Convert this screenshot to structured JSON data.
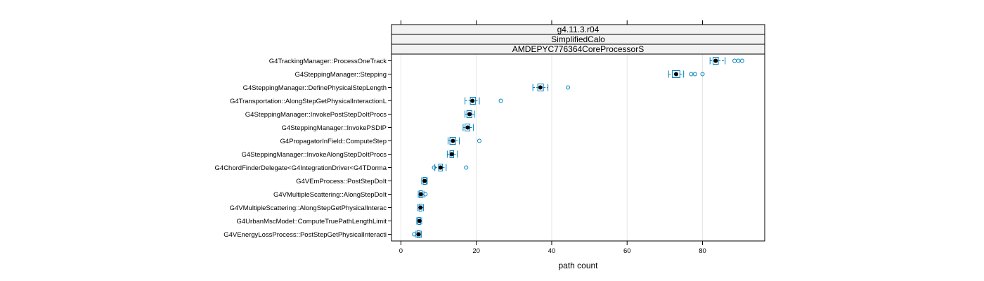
{
  "chart_data": {
    "type": "box",
    "strips": [
      "g4.11.3.r04",
      "SimplifiedCalo",
      "AMDEPYC776364CoreProcessorS"
    ],
    "xlabel": "path count",
    "xlim": [
      -2.5,
      96.5
    ],
    "xticks": [
      0,
      20,
      40,
      60,
      80
    ],
    "grid": "vertical",
    "colors": {
      "box": "#0080c0",
      "median": "#000000",
      "grid": "#e6e6e6",
      "axis": "#000000"
    },
    "categories": [
      "G4TrackingManager::ProcessOneTrack",
      "G4SteppingManager::Stepping",
      "G4SteppingManager::DefinePhysicalStepLength",
      "G4Transportation::AlongStepGetPhysicalInteractionL",
      "G4SteppingManager::InvokePostStepDoItProcs",
      "G4SteppingManager::InvokePSDIP",
      "G4PropagatorInField::ComputeStep",
      "G4SteppingManager::InvokeAlongStepDoItProcs",
      "G4ChordFinderDelegate<G4IntegrationDriver<G4TDorma",
      "G4VEmProcess::PostStepDoIt",
      "G4VMultipleScattering::AlongStepDoIt",
      "G4VMultipleScattering::AlongStepGetPhysicalInterac",
      "G4UrbanMscModel::ComputeTruePathLengthLimit",
      "G4VEnergyLossProcess::PostStepGetPhysicalInteracti"
    ],
    "boxes": [
      {
        "min": 82.0,
        "q1": 82.8,
        "median": 83.5,
        "q3": 84.2,
        "max": 86.0,
        "outliers": [
          88.5,
          89.5,
          90.5
        ]
      },
      {
        "min": 71.0,
        "q1": 72.0,
        "median": 73.0,
        "q3": 74.0,
        "max": 75.0,
        "outliers": [
          77.0,
          78.0,
          80.0
        ]
      },
      {
        "min": 35.0,
        "q1": 36.3,
        "median": 37.0,
        "q3": 37.8,
        "max": 39.0,
        "outliers": [
          44.3
        ]
      },
      {
        "min": 17.0,
        "q1": 18.4,
        "median": 19.0,
        "q3": 19.8,
        "max": 20.8,
        "outliers": [
          26.5
        ]
      },
      {
        "min": 17.0,
        "q1": 17.5,
        "median": 18.2,
        "q3": 18.8,
        "max": 19.5,
        "outliers": []
      },
      {
        "min": 16.5,
        "q1": 17.0,
        "median": 17.7,
        "q3": 18.3,
        "max": 19.2,
        "outliers": []
      },
      {
        "min": 12.5,
        "q1": 13.0,
        "median": 13.8,
        "q3": 14.5,
        "max": 15.5,
        "outliers": [
          20.8
        ]
      },
      {
        "min": 12.3,
        "q1": 13.0,
        "median": 13.5,
        "q3": 14.0,
        "max": 15.0,
        "outliers": []
      },
      {
        "min": 9.0,
        "q1": 10.0,
        "median": 10.5,
        "q3": 11.0,
        "max": 12.0,
        "outliers": [
          8.8,
          17.3
        ]
      },
      {
        "min": 5.5,
        "q1": 5.9,
        "median": 6.3,
        "q3": 6.7,
        "max": 7.0,
        "outliers": []
      },
      {
        "min": 4.6,
        "q1": 4.9,
        "median": 5.3,
        "q3": 5.7,
        "max": 6.1,
        "outliers": [
          6.5
        ]
      },
      {
        "min": 4.5,
        "q1": 4.8,
        "median": 5.2,
        "q3": 5.6,
        "max": 6.0,
        "outliers": []
      },
      {
        "min": 4.2,
        "q1": 4.5,
        "median": 4.9,
        "q3": 5.2,
        "max": 5.5,
        "outliers": []
      },
      {
        "min": 4.0,
        "q1": 4.3,
        "median": 4.7,
        "q3": 5.1,
        "max": 5.4,
        "outliers": [
          3.5
        ]
      }
    ]
  }
}
